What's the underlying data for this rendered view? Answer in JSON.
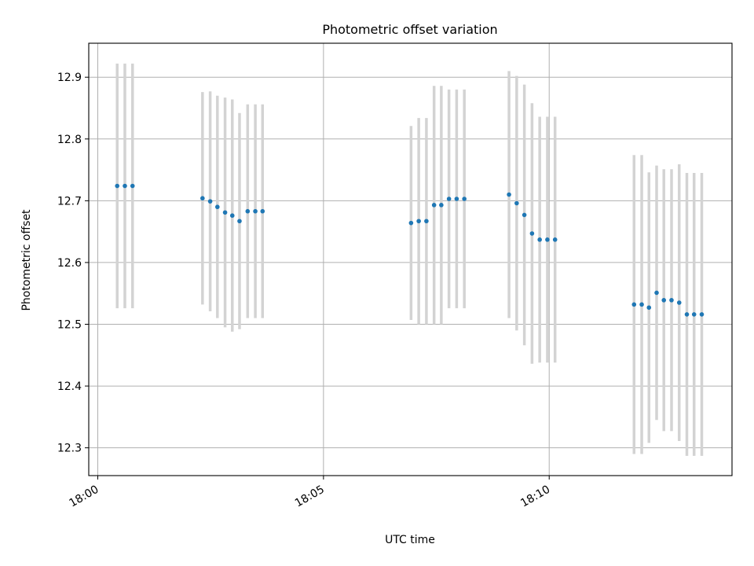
{
  "chart_data": {
    "type": "scatter",
    "title": "Photometric offset variation",
    "xlabel": "UTC time",
    "ylabel": "Photometric offset",
    "x_unit": "minutes after 18:00 UTC",
    "xlim": [
      -0.2,
      14.05
    ],
    "ylim": [
      12.255,
      12.955
    ],
    "x_ticks": [
      {
        "value": 0,
        "label": "18:00"
      },
      {
        "value": 5,
        "label": "18:05"
      },
      {
        "value": 10,
        "label": "18:10"
      }
    ],
    "y_ticks": [
      12.3,
      12.4,
      12.5,
      12.6,
      12.7,
      12.8,
      12.9
    ],
    "grid": true,
    "point_color": "#1f77b4",
    "errorbar_color": "#d3d3d3",
    "points": [
      {
        "x": 0.43,
        "y": 12.724,
        "lo": 12.526,
        "hi": 12.922
      },
      {
        "x": 0.6,
        "y": 12.724,
        "lo": 12.526,
        "hi": 12.922
      },
      {
        "x": 0.77,
        "y": 12.724,
        "lo": 12.526,
        "hi": 12.922
      },
      {
        "x": 2.32,
        "y": 12.704,
        "lo": 12.532,
        "hi": 12.876
      },
      {
        "x": 2.49,
        "y": 12.699,
        "lo": 12.521,
        "hi": 12.877
      },
      {
        "x": 2.65,
        "y": 12.69,
        "lo": 12.51,
        "hi": 12.87
      },
      {
        "x": 2.82,
        "y": 12.681,
        "lo": 12.495,
        "hi": 12.867
      },
      {
        "x": 2.98,
        "y": 12.676,
        "lo": 12.488,
        "hi": 12.864
      },
      {
        "x": 3.14,
        "y": 12.667,
        "lo": 12.492,
        "hi": 12.842
      },
      {
        "x": 3.32,
        "y": 12.683,
        "lo": 12.51,
        "hi": 12.856
      },
      {
        "x": 3.49,
        "y": 12.683,
        "lo": 12.51,
        "hi": 12.856
      },
      {
        "x": 3.65,
        "y": 12.683,
        "lo": 12.51,
        "hi": 12.856
      },
      {
        "x": 6.94,
        "y": 12.664,
        "lo": 12.507,
        "hi": 12.821
      },
      {
        "x": 7.11,
        "y": 12.667,
        "lo": 12.5,
        "hi": 12.834
      },
      {
        "x": 7.28,
        "y": 12.667,
        "lo": 12.5,
        "hi": 12.834
      },
      {
        "x": 7.45,
        "y": 12.693,
        "lo": 12.5,
        "hi": 12.886
      },
      {
        "x": 7.61,
        "y": 12.693,
        "lo": 12.5,
        "hi": 12.886
      },
      {
        "x": 7.78,
        "y": 12.703,
        "lo": 12.526,
        "hi": 12.88
      },
      {
        "x": 7.95,
        "y": 12.703,
        "lo": 12.526,
        "hi": 12.88
      },
      {
        "x": 8.12,
        "y": 12.703,
        "lo": 12.526,
        "hi": 12.88
      },
      {
        "x": 9.11,
        "y": 12.71,
        "lo": 12.51,
        "hi": 12.91
      },
      {
        "x": 9.28,
        "y": 12.696,
        "lo": 12.49,
        "hi": 12.902
      },
      {
        "x": 9.45,
        "y": 12.677,
        "lo": 12.466,
        "hi": 12.888
      },
      {
        "x": 9.62,
        "y": 12.647,
        "lo": 12.436,
        "hi": 12.858
      },
      {
        "x": 9.79,
        "y": 12.637,
        "lo": 12.438,
        "hi": 12.836
      },
      {
        "x": 9.96,
        "y": 12.637,
        "lo": 12.438,
        "hi": 12.836
      },
      {
        "x": 10.13,
        "y": 12.637,
        "lo": 12.438,
        "hi": 12.836
      },
      {
        "x": 11.88,
        "y": 12.532,
        "lo": 12.29,
        "hi": 12.774
      },
      {
        "x": 12.05,
        "y": 12.532,
        "lo": 12.29,
        "hi": 12.774
      },
      {
        "x": 12.21,
        "y": 12.527,
        "lo": 12.308,
        "hi": 12.746
      },
      {
        "x": 12.38,
        "y": 12.551,
        "lo": 12.345,
        "hi": 12.757
      },
      {
        "x": 12.54,
        "y": 12.539,
        "lo": 12.327,
        "hi": 12.751
      },
      {
        "x": 12.71,
        "y": 12.539,
        "lo": 12.327,
        "hi": 12.751
      },
      {
        "x": 12.88,
        "y": 12.535,
        "lo": 12.311,
        "hi": 12.759
      },
      {
        "x": 13.05,
        "y": 12.516,
        "lo": 12.287,
        "hi": 12.745
      },
      {
        "x": 13.21,
        "y": 12.516,
        "lo": 12.287,
        "hi": 12.745
      },
      {
        "x": 13.38,
        "y": 12.516,
        "lo": 12.287,
        "hi": 12.745
      }
    ]
  }
}
